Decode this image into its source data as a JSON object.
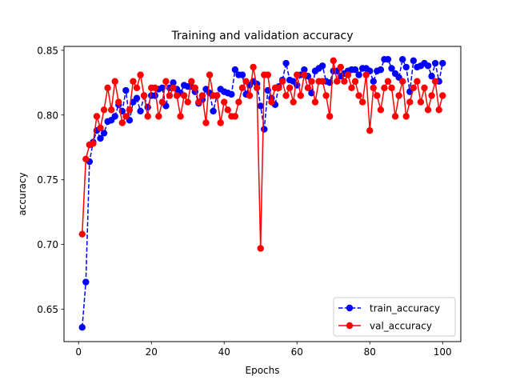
{
  "chart_data": {
    "type": "line",
    "title": "Training and validation accuracy",
    "xlabel": "Epochs",
    "ylabel": "accuracy",
    "xlim": [
      -4,
      105
    ],
    "ylim": [
      0.625,
      0.853
    ],
    "xticks": [
      0,
      20,
      40,
      60,
      80,
      100
    ],
    "xtick_labels": [
      "0",
      "20",
      "40",
      "60",
      "80",
      "100"
    ],
    "yticks": [
      0.65,
      0.7,
      0.75,
      0.8,
      0.85
    ],
    "ytick_labels": [
      "0.65",
      "0.70",
      "0.75",
      "0.80",
      "0.85"
    ],
    "legend_position": "lower-right",
    "series": [
      {
        "name": "train_accuracy",
        "color": "#0000ff",
        "line_style": "dashed",
        "marker": "circle",
        "x": [
          1,
          2,
          3,
          4,
          5,
          6,
          7,
          8,
          9,
          10,
          11,
          12,
          13,
          14,
          15,
          16,
          17,
          18,
          19,
          20,
          21,
          22,
          23,
          24,
          25,
          26,
          27,
          28,
          29,
          30,
          31,
          32,
          33,
          34,
          35,
          36,
          37,
          38,
          39,
          40,
          41,
          42,
          43,
          44,
          45,
          46,
          47,
          48,
          49,
          50,
          51,
          52,
          53,
          54,
          55,
          56,
          57,
          58,
          59,
          60,
          61,
          62,
          63,
          64,
          65,
          66,
          67,
          68,
          69,
          70,
          71,
          72,
          73,
          74,
          75,
          76,
          77,
          78,
          79,
          80,
          81,
          82,
          83,
          84,
          85,
          86,
          87,
          88,
          89,
          90,
          91,
          92,
          93,
          94,
          95,
          96,
          97,
          98,
          99,
          100
        ],
        "values": [
          0.636,
          0.671,
          0.764,
          0.779,
          0.788,
          0.782,
          0.786,
          0.795,
          0.796,
          0.799,
          0.808,
          0.803,
          0.819,
          0.796,
          0.81,
          0.813,
          0.803,
          0.815,
          0.806,
          0.815,
          0.815,
          0.82,
          0.821,
          0.807,
          0.821,
          0.825,
          0.82,
          0.817,
          0.823,
          0.822,
          0.822,
          0.818,
          0.809,
          0.812,
          0.82,
          0.817,
          0.803,
          0.815,
          0.82,
          0.818,
          0.817,
          0.816,
          0.835,
          0.831,
          0.831,
          0.816,
          0.823,
          0.826,
          0.824,
          0.807,
          0.789,
          0.819,
          0.813,
          0.808,
          0.822,
          0.827,
          0.84,
          0.827,
          0.826,
          0.823,
          0.831,
          0.835,
          0.83,
          0.817,
          0.834,
          0.836,
          0.838,
          0.826,
          0.825,
          0.834,
          0.834,
          0.83,
          0.832,
          0.834,
          0.835,
          0.835,
          0.831,
          0.836,
          0.836,
          0.834,
          0.826,
          0.834,
          0.835,
          0.843,
          0.843,
          0.836,
          0.832,
          0.829,
          0.843,
          0.837,
          0.818,
          0.842,
          0.837,
          0.838,
          0.84,
          0.838,
          0.83,
          0.84,
          0.826,
          0.84
        ]
      },
      {
        "name": "val_accuracy",
        "color": "#ff0000",
        "line_style": "solid",
        "marker": "circle",
        "x": [
          1,
          2,
          3,
          4,
          5,
          6,
          7,
          8,
          9,
          10,
          11,
          12,
          13,
          14,
          15,
          16,
          17,
          18,
          19,
          20,
          21,
          22,
          23,
          24,
          25,
          26,
          27,
          28,
          29,
          30,
          31,
          32,
          33,
          34,
          35,
          36,
          37,
          38,
          39,
          40,
          41,
          42,
          43,
          44,
          45,
          46,
          47,
          48,
          49,
          50,
          51,
          52,
          53,
          54,
          55,
          56,
          57,
          58,
          59,
          60,
          61,
          62,
          63,
          64,
          65,
          66,
          67,
          68,
          69,
          70,
          71,
          72,
          73,
          74,
          75,
          76,
          77,
          78,
          79,
          80,
          81,
          82,
          83,
          84,
          85,
          86,
          87,
          88,
          89,
          90,
          91,
          92,
          93,
          94,
          95,
          96,
          97,
          98,
          99,
          100
        ],
        "values": [
          0.708,
          0.766,
          0.777,
          0.778,
          0.799,
          0.79,
          0.804,
          0.821,
          0.804,
          0.826,
          0.81,
          0.794,
          0.799,
          0.804,
          0.826,
          0.821,
          0.831,
          0.815,
          0.799,
          0.821,
          0.821,
          0.799,
          0.81,
          0.826,
          0.815,
          0.821,
          0.815,
          0.799,
          0.815,
          0.81,
          0.826,
          0.821,
          0.81,
          0.815,
          0.794,
          0.831,
          0.815,
          0.815,
          0.794,
          0.81,
          0.804,
          0.799,
          0.799,
          0.81,
          0.821,
          0.826,
          0.815,
          0.837,
          0.821,
          0.697,
          0.831,
          0.831,
          0.81,
          0.821,
          0.821,
          0.826,
          0.815,
          0.821,
          0.81,
          0.831,
          0.815,
          0.831,
          0.821,
          0.826,
          0.81,
          0.826,
          0.826,
          0.815,
          0.799,
          0.842,
          0.826,
          0.837,
          0.826,
          0.831,
          0.821,
          0.826,
          0.815,
          0.81,
          0.831,
          0.788,
          0.821,
          0.815,
          0.804,
          0.821,
          0.826,
          0.821,
          0.799,
          0.815,
          0.826,
          0.799,
          0.81,
          0.821,
          0.826,
          0.81,
          0.821,
          0.804,
          0.815,
          0.826,
          0.804,
          0.815
        ]
      }
    ]
  }
}
